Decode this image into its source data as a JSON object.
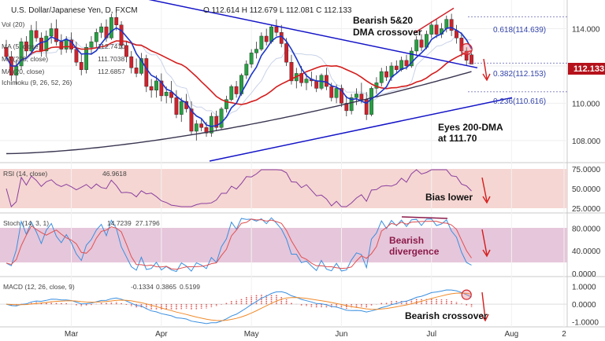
{
  "header": {
    "symbol": "U.S. Dollar/Japanese Yen, D, FXCM",
    "ohlc": "O 112.614 H 112.679 L 112.081 C 112.133"
  },
  "price_badge": {
    "value": "112.133",
    "color": "#b5121b"
  },
  "indicator_labels": {
    "vol": "Vol (20)",
    "ma5": "MA (5, close)",
    "ma5_value": "112.7410",
    "ma200": "MA (200, close)",
    "ma200_value": "111.7038",
    "ma20": "MA (20, close)",
    "ma20_value": "112.6857",
    "ichimoku": "Ichimoku (9, 26, 52, 26)",
    "rsi": "RSI (14, close)",
    "rsi_value": "46.9618",
    "stoch": "Stoch (14, 3, 1)",
    "stoch_k": "14.7239",
    "stoch_d": "27.1796",
    "macd": "MACD (12, 26, close, 9)",
    "macd_v1": "-0.1334",
    "macd_v2": "0.3865",
    "macd_v3": "0.5199"
  },
  "annotations": {
    "dma_cross_1": "Bearish 5&20",
    "dma_cross_2": "DMA crossover",
    "eyes_1": "Eyes 200-DMA",
    "eyes_2": "at 111.70",
    "bias": "Bias lower",
    "div_1": "Bearish",
    "div_2": "divergence",
    "macd_cross": "Bearish crossover"
  },
  "fib_labels": {
    "f618": "0.618(114.639)",
    "f382": "0.382(112.153)",
    "f236": "0.236(110.616)"
  },
  "colors": {
    "candle_up": "#26a041",
    "candle_down": "#d0212b",
    "ma5": "#1a35c8",
    "ma20": "#d41c1c",
    "ma200": "#3a3550",
    "trendline": "#1414c8",
    "rsi_line": "#8a3fa0",
    "rsi_band": "#f5d6d2",
    "stoch_band": "#e6c6da",
    "stoch_k": "#3a8fe0",
    "stoch_d": "#e05050",
    "macd_line": "#3a8fe0",
    "macd_signal": "#f08a2a",
    "macd_hist": "#e05050",
    "arrow": "#d41c1c"
  },
  "chart_data": [
    {
      "type": "candlestick",
      "title": "U.S. Dollar/Japanese Yen, D, FXCM",
      "x_ticks": [
        "Mar",
        "Apr",
        "May",
        "Jun",
        "Jul",
        "Aug",
        "2"
      ],
      "y_ticks": [
        108.0,
        110.0,
        112.0,
        114.0
      ],
      "ylim": [
        106.9,
        115.2
      ],
      "fib_levels": [
        114.639,
        112.153,
        110.616
      ],
      "last_close": 112.133,
      "candles": [
        [
          113.0,
          113.4,
          112.3,
          112.5
        ],
        [
          112.5,
          112.8,
          111.2,
          111.5
        ],
        [
          111.5,
          112.3,
          111.0,
          112.0
        ],
        [
          112.0,
          113.5,
          111.8,
          113.3
        ],
        [
          113.3,
          113.6,
          112.5,
          112.8
        ],
        [
          112.8,
          114.2,
          112.6,
          113.9
        ],
        [
          113.9,
          114.4,
          113.3,
          113.5
        ],
        [
          113.5,
          113.8,
          112.5,
          112.8
        ],
        [
          112.8,
          113.9,
          112.5,
          113.6
        ],
        [
          113.6,
          114.3,
          113.2,
          114.0
        ],
        [
          114.0,
          114.5,
          113.1,
          113.3
        ],
        [
          113.3,
          113.7,
          112.6,
          112.9
        ],
        [
          112.9,
          113.6,
          112.7,
          113.4
        ],
        [
          113.4,
          113.8,
          112.7,
          112.9
        ],
        [
          112.9,
          113.3,
          112.0,
          112.2
        ],
        [
          112.2,
          112.6,
          111.5,
          111.8
        ],
        [
          111.8,
          113.2,
          111.6,
          113.0
        ],
        [
          113.0,
          113.6,
          112.6,
          113.3
        ],
        [
          113.3,
          114.0,
          113.0,
          113.8
        ],
        [
          113.8,
          114.3,
          113.5,
          114.1
        ],
        [
          114.1,
          114.5,
          113.3,
          113.5
        ],
        [
          113.5,
          114.8,
          113.4,
          114.6
        ],
        [
          114.6,
          114.9,
          113.9,
          114.2
        ],
        [
          114.2,
          114.4,
          112.9,
          113.1
        ],
        [
          113.1,
          113.3,
          112.2,
          112.5
        ],
        [
          112.5,
          112.8,
          111.6,
          111.9
        ],
        [
          111.9,
          112.4,
          111.4,
          111.6
        ],
        [
          111.6,
          112.7,
          111.5,
          112.4
        ],
        [
          112.4,
          112.6,
          110.6,
          110.9
        ],
        [
          110.9,
          111.3,
          110.3,
          110.7
        ],
        [
          110.7,
          111.5,
          110.3,
          111.2
        ],
        [
          111.2,
          111.6,
          110.1,
          110.4
        ],
        [
          110.4,
          110.9,
          110.0,
          110.6
        ],
        [
          110.6,
          111.2,
          110.0,
          110.3
        ],
        [
          110.3,
          110.7,
          109.2,
          109.4
        ],
        [
          109.4,
          110.3,
          109.0,
          110.1
        ],
        [
          110.1,
          110.5,
          109.5,
          109.7
        ],
        [
          109.7,
          110.1,
          108.3,
          108.5
        ],
        [
          108.5,
          109.1,
          108.0,
          108.9
        ],
        [
          108.9,
          109.2,
          108.5,
          108.7
        ],
        [
          108.7,
          109.0,
          108.2,
          108.4
        ],
        [
          108.4,
          109.5,
          108.2,
          109.3
        ],
        [
          109.3,
          109.6,
          108.5,
          108.7
        ],
        [
          108.7,
          109.8,
          108.6,
          109.7
        ],
        [
          109.7,
          110.4,
          109.5,
          110.2
        ],
        [
          110.2,
          111.0,
          110.1,
          110.9
        ],
        [
          110.9,
          111.2,
          110.3,
          110.5
        ],
        [
          110.5,
          111.6,
          110.4,
          111.5
        ],
        [
          111.5,
          112.3,
          111.3,
          112.1
        ],
        [
          112.1,
          112.9,
          111.9,
          112.7
        ],
        [
          112.7,
          113.3,
          112.4,
          112.9
        ],
        [
          112.9,
          113.8,
          112.8,
          113.6
        ],
        [
          113.6,
          114.0,
          113.1,
          113.3
        ],
        [
          113.3,
          114.2,
          113.2,
          114.1
        ],
        [
          114.1,
          114.5,
          113.6,
          113.8
        ],
        [
          113.8,
          114.2,
          113.0,
          113.2
        ],
        [
          113.2,
          113.5,
          112.0,
          112.2
        ],
        [
          112.2,
          112.6,
          111.0,
          111.2
        ],
        [
          111.2,
          111.9,
          110.8,
          111.6
        ],
        [
          111.6,
          112.0,
          110.9,
          111.1
        ],
        [
          111.1,
          111.6,
          110.7,
          111.3
        ],
        [
          111.3,
          111.7,
          110.9,
          111.2
        ],
        [
          111.2,
          111.5,
          110.6,
          110.8
        ],
        [
          110.8,
          111.6,
          110.7,
          111.5
        ],
        [
          111.5,
          111.9,
          110.7,
          110.9
        ],
        [
          110.9,
          111.1,
          110.1,
          110.3
        ],
        [
          110.3,
          111.0,
          110.0,
          110.8
        ],
        [
          110.8,
          111.0,
          109.8,
          110.0
        ],
        [
          110.0,
          110.4,
          109.3,
          109.6
        ],
        [
          109.6,
          110.5,
          109.4,
          110.3
        ],
        [
          110.3,
          110.8,
          109.9,
          110.5
        ],
        [
          110.5,
          111.1,
          110.0,
          110.2
        ],
        [
          110.2,
          110.6,
          109.1,
          109.4
        ],
        [
          109.4,
          110.9,
          109.3,
          110.8
        ],
        [
          110.8,
          111.4,
          110.5,
          111.1
        ],
        [
          111.1,
          111.9,
          110.9,
          111.7
        ],
        [
          111.7,
          112.0,
          111.2,
          111.4
        ],
        [
          111.4,
          112.2,
          111.2,
          112.0
        ],
        [
          112.0,
          112.3,
          111.6,
          111.8
        ],
        [
          111.8,
          112.5,
          111.7,
          112.3
        ],
        [
          112.3,
          112.6,
          111.8,
          112.0
        ],
        [
          112.0,
          113.0,
          111.9,
          112.8
        ],
        [
          112.8,
          113.6,
          112.6,
          113.4
        ],
        [
          113.4,
          113.7,
          112.8,
          113.0
        ],
        [
          113.0,
          113.9,
          112.9,
          113.7
        ],
        [
          113.7,
          114.4,
          113.5,
          114.2
        ],
        [
          114.2,
          114.5,
          113.5,
          113.7
        ],
        [
          113.7,
          114.3,
          113.5,
          114.0
        ],
        [
          114.0,
          114.7,
          113.8,
          114.5
        ],
        [
          114.5,
          114.8,
          113.6,
          113.9
        ],
        [
          113.9,
          114.2,
          113.2,
          113.5
        ],
        [
          113.5,
          113.8,
          112.5,
          112.8
        ],
        [
          112.8,
          113.0,
          112.0,
          112.3
        ],
        [
          112.6,
          112.7,
          112.1,
          112.1
        ]
      ]
    },
    {
      "type": "line",
      "title": "RSI (14, close)",
      "y_ticks": [
        25.0,
        50.0,
        75.0
      ],
      "ylim": [
        25,
        75
      ],
      "band": [
        30,
        70
      ],
      "last_value": 46.9618
    },
    {
      "type": "line",
      "title": "Stoch (14, 3, 1)",
      "y_ticks": [
        0.0,
        40.0,
        80.0
      ],
      "ylim": [
        0,
        100
      ],
      "band": [
        20,
        80
      ],
      "last_k": 14.7239,
      "last_d": 27.1796
    },
    {
      "type": "line",
      "title": "MACD (12, 26, close, 9)",
      "y_ticks": [
        -1.0,
        0.0,
        1.0
      ],
      "ylim": [
        -1.1,
        1.2
      ],
      "last_values": [
        -0.1334,
        0.3865,
        0.5199
      ]
    }
  ]
}
